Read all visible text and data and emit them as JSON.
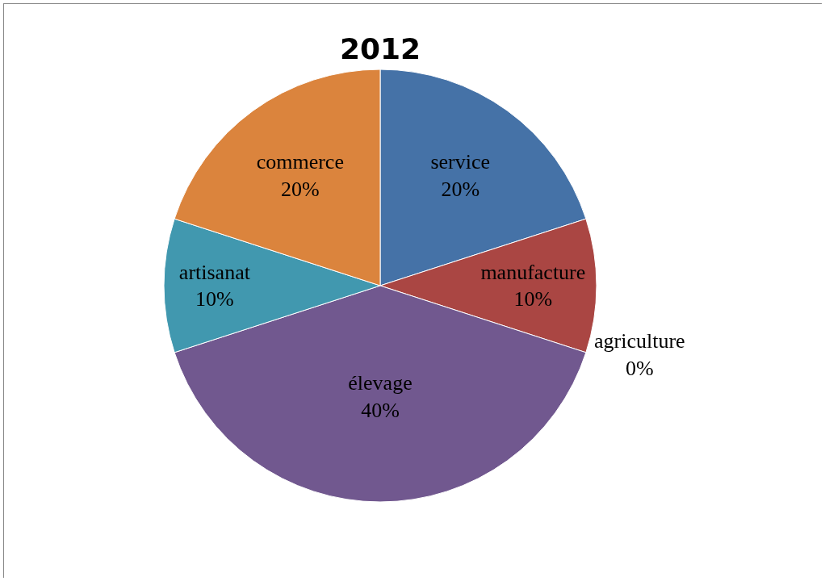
{
  "chart_data": {
    "type": "pie",
    "title": "2012",
    "categories": [
      "service",
      "manufacture",
      "agriculture",
      "élevage",
      "artisanat",
      "commerce"
    ],
    "values": [
      20,
      10,
      0,
      40,
      10,
      20
    ],
    "value_labels": [
      "20%",
      "10%",
      "0%",
      "40%",
      "10%",
      "20%"
    ],
    "colors": [
      "#4572a7",
      "#aa4643",
      "#89a54e",
      "#71588f",
      "#4198af",
      "#db843d"
    ],
    "legend": false
  }
}
